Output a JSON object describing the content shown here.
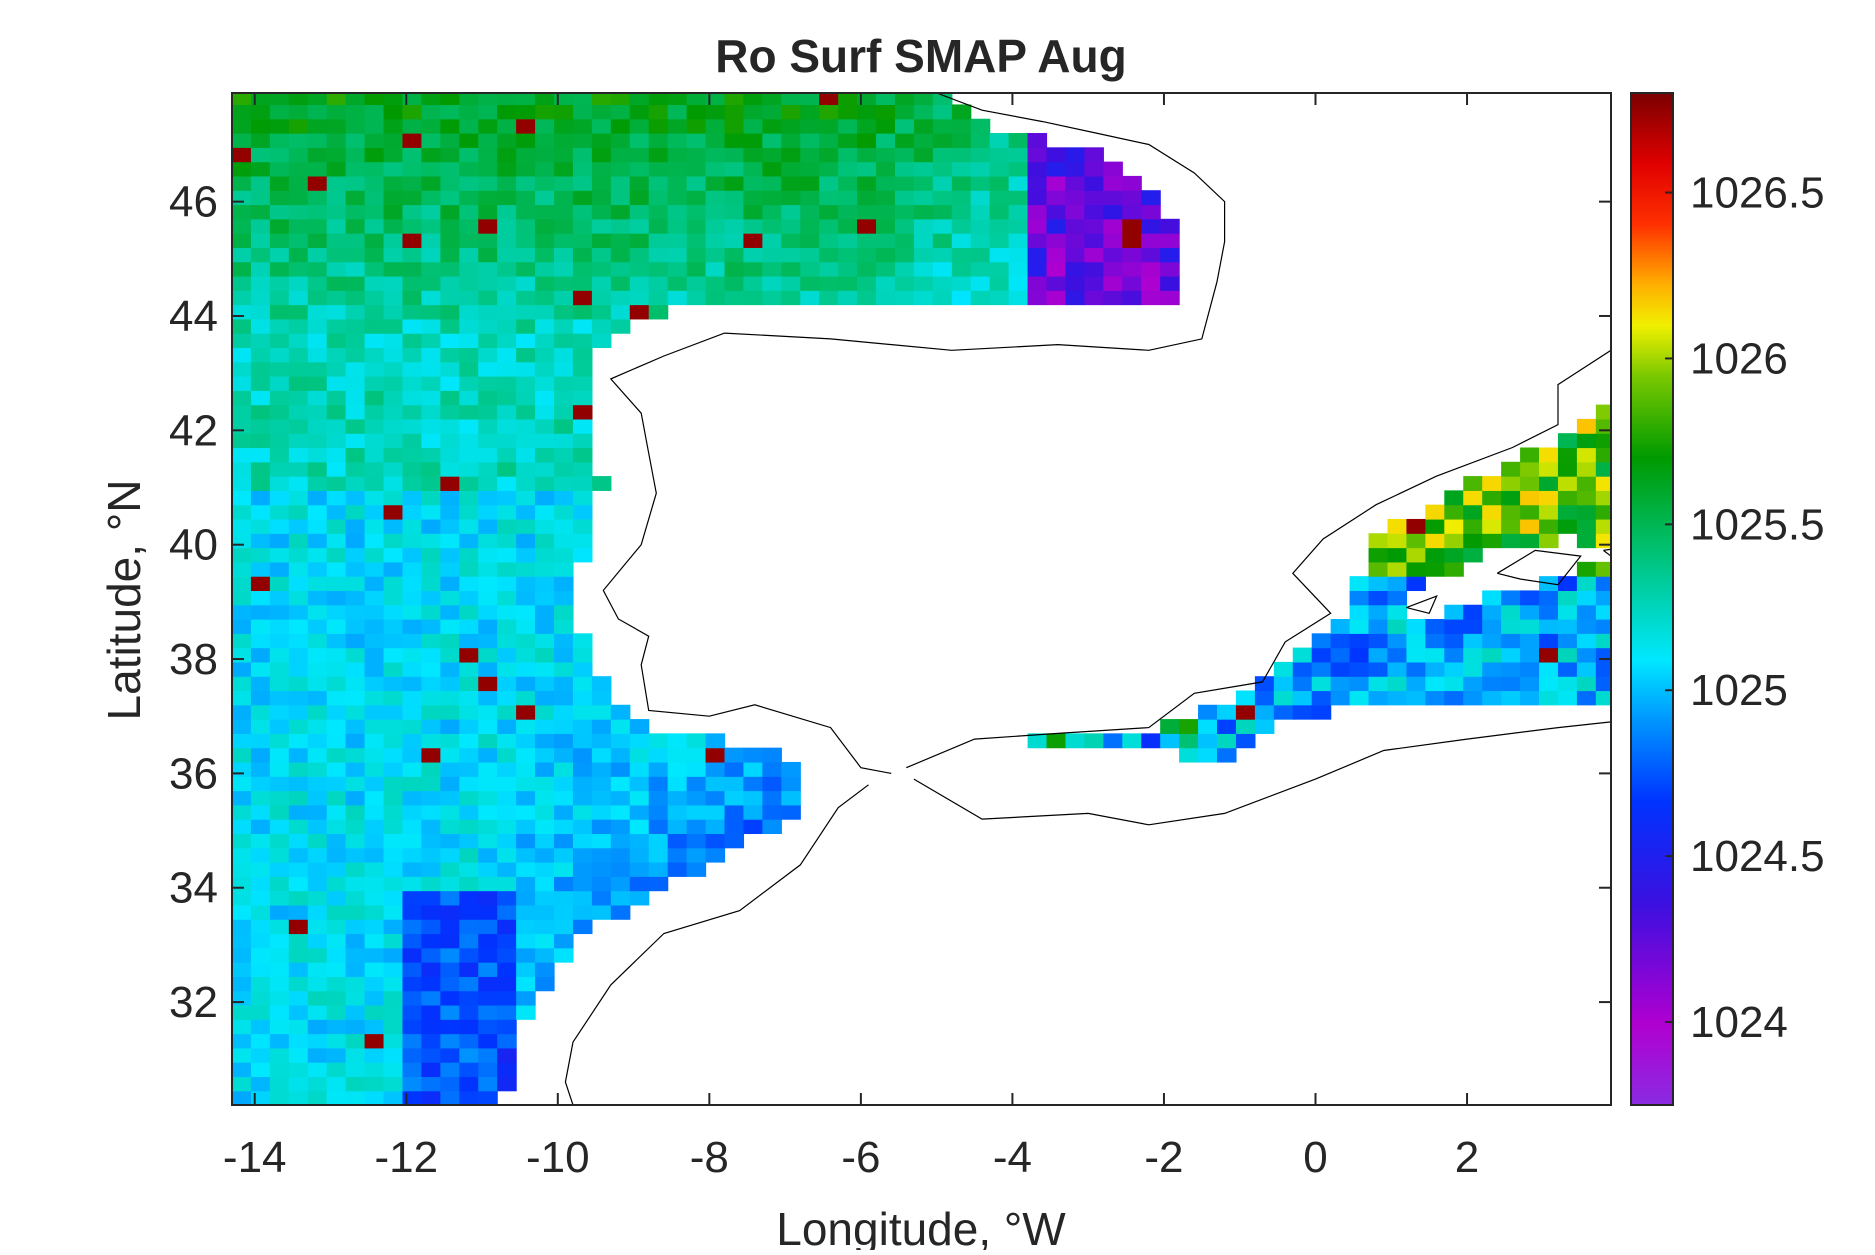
{
  "chart_data": {
    "type": "heatmap",
    "title": "Ro Surf SMAP Aug",
    "xlabel": "Longitude, °W",
    "ylabel": "Latitude, °N",
    "xlim": [
      -14.3,
      3.9
    ],
    "ylim": [
      30.2,
      47.9
    ],
    "xticks": [
      -14,
      -12,
      -10,
      -8,
      -6,
      -4,
      -2,
      0,
      2
    ],
    "xtick_labels": [
      "-14",
      "-12",
      "-10",
      "-8",
      "-6",
      "-4",
      "-2",
      "0",
      "2"
    ],
    "yticks": [
      32,
      34,
      36,
      38,
      40,
      42,
      44,
      46
    ],
    "ytick_labels": [
      "32",
      "34",
      "36",
      "38",
      "40",
      "42",
      "44",
      "46"
    ],
    "colorbar": {
      "range": [
        1023.75,
        1026.8
      ],
      "ticks": [
        1024,
        1024.5,
        1025,
        1025.5,
        1026,
        1026.5
      ],
      "tick_labels": [
        "1024",
        "1024.5",
        "1025",
        "1025.5",
        "1026",
        "1026.5"
      ],
      "colormap": "jet-like (purple-blue-cyan-green-yellow-red-dark red)"
    },
    "grid": false,
    "regions_approx": [
      {
        "region": "Bay of Biscay north (lat 46-47.9, lon -14 to -6)",
        "value": 1025.6
      },
      {
        "region": "Bay of Biscay central (lat 44-46, lon -14 to -6)",
        "value": 1025.35
      },
      {
        "region": "Bay of Biscay southeast corner (lat 44.3-46, lon -3.5 to -2)",
        "value": 1024.2
      },
      {
        "region": "Atlantic off Portugal (lat 38-43, lon -14 to -10)",
        "value": 1025.05
      },
      {
        "region": "Gulf of Cadiz / off Morocco (lat 33-37, lon -11 to -7)",
        "value": 1024.75
      },
      {
        "region": "Atlantic southwest (lat 30-34, lon -14 to -11)",
        "value": 1024.9
      },
      {
        "region": "Alboran Sea (lat 36-37, lon -4 to -1)",
        "value": 1025.3
      },
      {
        "region": "Balearic Sea (lat 37.5-39, lon 0 to 3.9)",
        "value": 1024.9
      },
      {
        "region": "NW Mediterranean (lat 39.5-41.5, lon 1 to 3.9)",
        "value": 1025.9
      }
    ]
  }
}
